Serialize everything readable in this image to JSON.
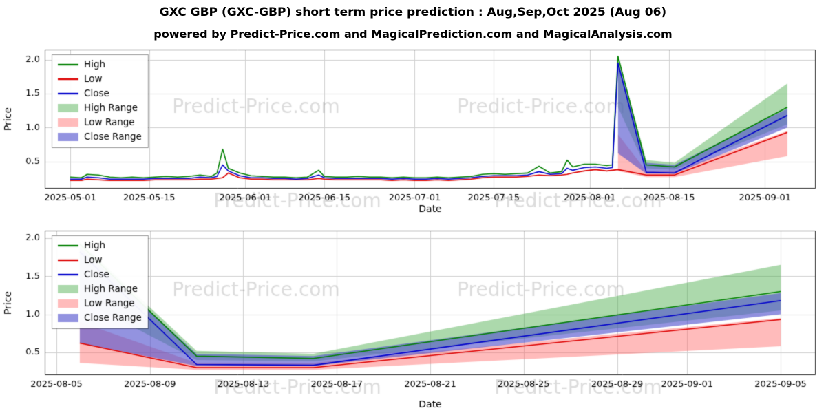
{
  "header": {
    "title": "GXC GBP (GXC-GBP) short term price prediction : Aug,Sep,Oct 2025 (Aug 06)",
    "subtitle": "powered by Predict-Price.com and MagicalPrediction.com and MagicalAnalysis.com"
  },
  "watermark": {
    "text": "Predict-Price.com"
  },
  "colors": {
    "high": "#008000",
    "low": "#dd0000",
    "close": "#0000cc",
    "high_range": "rgba(70,170,70,0.45)",
    "low_range": "rgba(255,105,105,0.45)",
    "close_range": "rgba(80,80,205,0.62)",
    "grid": "#cfcfcf",
    "border": "#2b2b2b",
    "watermark_color": "rgba(128,128,128,0.28)"
  },
  "chart_data": [
    {
      "type": "line",
      "title": "",
      "xlabel": "Date",
      "ylabel": "Price",
      "xlim": [
        -4.5,
        132
      ],
      "ylim": [
        0.1,
        2.15
      ],
      "grid": true,
      "legend_position": "upper-left",
      "xticks": [
        {
          "v": 0,
          "label": "2025-05-01"
        },
        {
          "v": 14,
          "label": "2025-05-15"
        },
        {
          "v": 31,
          "label": "2025-06-01"
        },
        {
          "v": 45,
          "label": "2025-06-15"
        },
        {
          "v": 61,
          "label": "2025-07-01"
        },
        {
          "v": 75,
          "label": "2025-07-15"
        },
        {
          "v": 92,
          "label": "2025-08-01"
        },
        {
          "v": 106,
          "label": "2025-08-15"
        },
        {
          "v": 123,
          "label": "2025-09-01"
        }
      ],
      "yticks": [
        {
          "v": 0.5,
          "label": "0.5"
        },
        {
          "v": 1.0,
          "label": "1.0"
        },
        {
          "v": 1.5,
          "label": "1.5"
        },
        {
          "v": 2.0,
          "label": "2.0"
        }
      ],
      "bands": [
        {
          "name": "High Range",
          "color": "rgba(70,170,70,0.45)",
          "x": [
            97,
            102,
            107,
            127
          ],
          "lower": [
            1.3,
            0.4,
            0.38,
            1.05
          ],
          "upper": [
            2.05,
            0.52,
            0.48,
            1.65
          ]
        },
        {
          "name": "Low Range",
          "color": "rgba(255,105,105,0.45)",
          "x": [
            97,
            102,
            107,
            127
          ],
          "lower": [
            0.36,
            0.27,
            0.27,
            0.58
          ],
          "upper": [
            0.9,
            0.36,
            0.36,
            0.95
          ]
        },
        {
          "name": "Close Range",
          "color": "rgba(80,80,205,0.62)",
          "x": [
            97,
            102,
            107,
            127
          ],
          "lower": [
            0.62,
            0.32,
            0.32,
            1.0
          ],
          "upper": [
            1.98,
            0.48,
            0.45,
            1.28
          ]
        }
      ],
      "series": [
        {
          "name": "High",
          "color": "#008000",
          "x": [
            0,
            2,
            3,
            5,
            7,
            9,
            11,
            13,
            15,
            17,
            19,
            21,
            23,
            25,
            26,
            27,
            28,
            30,
            32,
            34,
            36,
            38,
            40,
            42,
            44,
            45,
            47,
            49,
            51,
            53,
            55,
            57,
            59,
            61,
            63,
            65,
            67,
            69,
            71,
            73,
            75,
            77,
            79,
            81,
            83,
            85,
            87,
            88,
            89,
            91,
            93,
            95,
            96,
            97,
            102,
            107,
            127
          ],
          "y": [
            0.27,
            0.26,
            0.31,
            0.3,
            0.27,
            0.26,
            0.27,
            0.26,
            0.27,
            0.28,
            0.27,
            0.28,
            0.3,
            0.28,
            0.33,
            0.68,
            0.4,
            0.33,
            0.29,
            0.28,
            0.27,
            0.27,
            0.26,
            0.27,
            0.37,
            0.28,
            0.27,
            0.27,
            0.28,
            0.27,
            0.27,
            0.26,
            0.27,
            0.26,
            0.26,
            0.27,
            0.26,
            0.27,
            0.28,
            0.31,
            0.32,
            0.31,
            0.32,
            0.33,
            0.43,
            0.33,
            0.35,
            0.52,
            0.42,
            0.46,
            0.46,
            0.44,
            0.45,
            2.05,
            0.45,
            0.42,
            1.3
          ]
        },
        {
          "name": "Low",
          "color": "#dd0000",
          "x": [
            0,
            2,
            3,
            5,
            7,
            9,
            11,
            13,
            15,
            17,
            19,
            21,
            23,
            25,
            26,
            27,
            28,
            30,
            32,
            34,
            36,
            38,
            40,
            42,
            44,
            45,
            47,
            49,
            51,
            53,
            55,
            57,
            59,
            61,
            63,
            65,
            67,
            69,
            71,
            73,
            75,
            77,
            79,
            81,
            83,
            85,
            87,
            88,
            89,
            91,
            93,
            95,
            96,
            97,
            102,
            107,
            127
          ],
          "y": [
            0.22,
            0.22,
            0.24,
            0.23,
            0.22,
            0.22,
            0.22,
            0.22,
            0.23,
            0.23,
            0.23,
            0.23,
            0.24,
            0.24,
            0.25,
            0.26,
            0.33,
            0.26,
            0.24,
            0.24,
            0.23,
            0.23,
            0.23,
            0.23,
            0.25,
            0.24,
            0.23,
            0.23,
            0.23,
            0.23,
            0.23,
            0.22,
            0.23,
            0.22,
            0.22,
            0.23,
            0.22,
            0.23,
            0.24,
            0.26,
            0.27,
            0.27,
            0.27,
            0.28,
            0.3,
            0.29,
            0.3,
            0.31,
            0.33,
            0.36,
            0.38,
            0.36,
            0.37,
            0.38,
            0.3,
            0.3,
            0.93
          ]
        },
        {
          "name": "Close",
          "color": "#0000cc",
          "x": [
            0,
            2,
            3,
            5,
            7,
            9,
            11,
            13,
            15,
            17,
            19,
            21,
            23,
            25,
            26,
            27,
            28,
            30,
            32,
            34,
            36,
            38,
            40,
            42,
            44,
            45,
            47,
            49,
            51,
            53,
            55,
            57,
            59,
            61,
            63,
            65,
            67,
            69,
            71,
            73,
            75,
            77,
            79,
            81,
            83,
            85,
            87,
            88,
            89,
            91,
            93,
            95,
            96,
            97,
            102,
            107,
            127
          ],
          "y": [
            0.24,
            0.24,
            0.27,
            0.26,
            0.24,
            0.24,
            0.24,
            0.24,
            0.25,
            0.25,
            0.25,
            0.25,
            0.27,
            0.26,
            0.28,
            0.45,
            0.36,
            0.29,
            0.26,
            0.26,
            0.25,
            0.25,
            0.24,
            0.25,
            0.3,
            0.26,
            0.25,
            0.25,
            0.25,
            0.25,
            0.25,
            0.24,
            0.25,
            0.24,
            0.24,
            0.25,
            0.24,
            0.25,
            0.26,
            0.28,
            0.29,
            0.29,
            0.29,
            0.3,
            0.35,
            0.31,
            0.32,
            0.4,
            0.37,
            0.41,
            0.42,
            0.4,
            0.41,
            1.95,
            0.34,
            0.33,
            1.18
          ]
        }
      ],
      "legend": [
        {
          "label": "High",
          "type": "line",
          "color": "#008000"
        },
        {
          "label": "Low",
          "type": "line",
          "color": "#dd0000"
        },
        {
          "label": "Close",
          "type": "line",
          "color": "#0000cc"
        },
        {
          "label": "High Range",
          "type": "band",
          "color": "rgba(70,170,70,0.45)"
        },
        {
          "label": "Low Range",
          "type": "band",
          "color": "rgba(255,105,105,0.45)"
        },
        {
          "label": "Close Range",
          "type": "band",
          "color": "rgba(80,80,205,0.62)"
        }
      ]
    },
    {
      "type": "line",
      "title": "",
      "xlabel": "Date",
      "ylabel": "Price",
      "xlim": [
        -0.5,
        32.5
      ],
      "ylim": [
        0.2,
        2.1
      ],
      "grid": true,
      "legend_position": "upper-left",
      "xticks": [
        {
          "v": 0,
          "label": "2025-08-05"
        },
        {
          "v": 4,
          "label": "2025-08-09"
        },
        {
          "v": 8,
          "label": "2025-08-13"
        },
        {
          "v": 12,
          "label": "2025-08-17"
        },
        {
          "v": 16,
          "label": "2025-08-21"
        },
        {
          "v": 20,
          "label": "2025-08-25"
        },
        {
          "v": 24,
          "label": "2025-08-29"
        },
        {
          "v": 27,
          "label": "2025-09-01"
        },
        {
          "v": 31,
          "label": "2025-09-05"
        }
      ],
      "yticks": [
        {
          "v": 0.5,
          "label": "0.5"
        },
        {
          "v": 1.0,
          "label": "1.0"
        },
        {
          "v": 1.5,
          "label": "1.5"
        },
        {
          "v": 2.0,
          "label": "2.0"
        }
      ],
      "bands": [
        {
          "name": "High Range",
          "color": "rgba(70,170,70,0.45)",
          "x": [
            1,
            6,
            11,
            31
          ],
          "lower": [
            1.2,
            0.4,
            0.38,
            1.05
          ],
          "upper": [
            1.95,
            0.52,
            0.48,
            1.65
          ]
        },
        {
          "name": "Low Range",
          "color": "rgba(255,105,105,0.45)",
          "x": [
            1,
            6,
            11,
            31
          ],
          "lower": [
            0.36,
            0.27,
            0.27,
            0.58
          ],
          "upper": [
            0.9,
            0.36,
            0.36,
            0.95
          ]
        },
        {
          "name": "Close Range",
          "color": "rgba(80,80,205,0.62)",
          "x": [
            1,
            6,
            11,
            31
          ],
          "lower": [
            0.62,
            0.32,
            0.32,
            1.0
          ],
          "upper": [
            1.88,
            0.48,
            0.45,
            1.28
          ]
        }
      ],
      "series": [
        {
          "name": "High",
          "color": "#008000",
          "x": [
            1,
            6,
            11,
            31
          ],
          "y": [
            1.92,
            0.45,
            0.42,
            1.3
          ]
        },
        {
          "name": "Low",
          "color": "#dd0000",
          "x": [
            1,
            6,
            11,
            31
          ],
          "y": [
            0.62,
            0.3,
            0.3,
            0.93
          ]
        },
        {
          "name": "Close",
          "color": "#0000cc",
          "x": [
            1,
            6,
            11,
            31
          ],
          "y": [
            1.82,
            0.34,
            0.33,
            1.18
          ]
        }
      ],
      "legend": [
        {
          "label": "High",
          "type": "line",
          "color": "#008000"
        },
        {
          "label": "Low",
          "type": "line",
          "color": "#dd0000"
        },
        {
          "label": "Close",
          "type": "line",
          "color": "#0000cc"
        },
        {
          "label": "High Range",
          "type": "band",
          "color": "rgba(70,170,70,0.45)"
        },
        {
          "label": "Low Range",
          "type": "band",
          "color": "rgba(255,105,105,0.45)"
        },
        {
          "label": "Close Range",
          "type": "band",
          "color": "rgba(80,80,205,0.62)"
        }
      ]
    }
  ]
}
